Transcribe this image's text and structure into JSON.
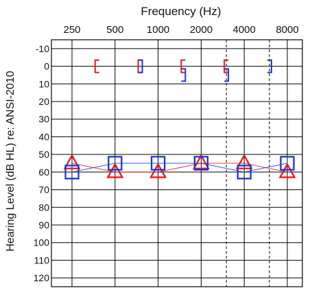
{
  "chart_data": {
    "type": "scatter",
    "title": "Frequency (Hz)",
    "xlabel": "Frequency (Hz)",
    "ylabel": "Hearing Level (dB HL) re: ANSI-2010",
    "x_ticks": [
      "250",
      "500",
      "1000",
      "2000",
      "4000",
      "8000"
    ],
    "y_ticks": [
      "-10",
      "0",
      "10",
      "20",
      "30",
      "40",
      "50",
      "60",
      "70",
      "80",
      "90",
      "100",
      "110",
      "120"
    ],
    "ylim": [
      -15,
      125
    ],
    "y_inverted": true,
    "x_scale": "log2",
    "grid": true,
    "dashed_vertical_lines_hz": [
      3000,
      6000
    ],
    "series": [
      {
        "marker": "triangle",
        "color": "#e8161b",
        "x": [
          250,
          500,
          1000,
          2000,
          4000,
          8000
        ],
        "y": [
          55,
          60,
          60,
          55,
          55,
          60
        ]
      },
      {
        "marker": "square",
        "color": "#1a35d6",
        "x": [
          250,
          500,
          1000,
          2000,
          4000,
          8000
        ],
        "y": [
          60,
          55,
          55,
          55,
          60,
          55
        ]
      },
      {
        "marker": "bracket-open",
        "color": "#e8161b",
        "x": [
          375,
          750,
          1500,
          3000
        ],
        "y": [
          0,
          0,
          0,
          0
        ]
      },
      {
        "marker": "bracket-close",
        "color": "#1a35d6",
        "x": [
          750,
          1500,
          3000,
          6000
        ],
        "y": [
          0,
          5,
          5,
          0
        ]
      }
    ]
  }
}
